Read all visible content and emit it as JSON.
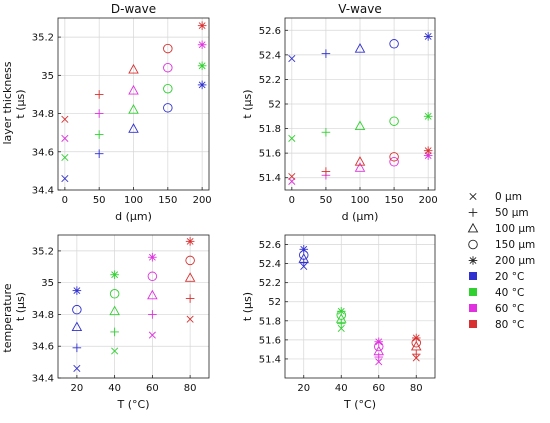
{
  "colors": {
    "T20": "#3030d0",
    "T40": "#30d030",
    "T60": "#e030e0",
    "T80": "#d83030"
  },
  "row_labels": [
    "layer thickness",
    "temperature"
  ],
  "legend": {
    "markers": [
      {
        "label": "0 µm",
        "marker": "x-mark"
      },
      {
        "label": "50 µm",
        "marker": "plus-mark"
      },
      {
        "label": "100 µm",
        "marker": "triangle-mark"
      },
      {
        "label": "150 µm",
        "marker": "circle-mark"
      },
      {
        "label": "200 µm",
        "marker": "star-mark"
      }
    ],
    "colors": [
      {
        "label": "20 °C",
        "color": "#3030d0"
      },
      {
        "label": "40 °C",
        "color": "#30d030"
      },
      {
        "label": "60 °C",
        "color": "#e030e0"
      },
      {
        "label": "80 °C",
        "color": "#d83030"
      }
    ]
  },
  "chart_data": [
    {
      "type": "scatter",
      "title": "D-wave",
      "xlabel": "d (µm)",
      "ylabel": "t (µs)",
      "xlim": [
        -10,
        210
      ],
      "ylim": [
        34.4,
        35.3
      ],
      "xticks": [
        0,
        50,
        100,
        150,
        200
      ],
      "yticks": [
        34.4,
        34.6,
        34.8,
        35.0,
        35.2
      ],
      "xticklabels": [
        "0",
        "50",
        "100",
        "150",
        "200"
      ],
      "yticklabels": [
        "34.4",
        "34.6",
        "34.8",
        "35",
        "35.2"
      ],
      "grid": true,
      "series": [
        {
          "temperature": "20 °C",
          "x": [
            0,
            50,
            100,
            150,
            200
          ],
          "y": [
            34.46,
            34.59,
            34.72,
            34.83,
            34.95
          ]
        },
        {
          "temperature": "40 °C",
          "x": [
            0,
            50,
            100,
            150,
            200
          ],
          "y": [
            34.57,
            34.69,
            34.82,
            34.93,
            35.05
          ]
        },
        {
          "temperature": "60 °C",
          "x": [
            0,
            50,
            100,
            150,
            200
          ],
          "y": [
            34.67,
            34.8,
            34.92,
            35.04,
            35.16
          ]
        },
        {
          "temperature": "80 °C",
          "x": [
            0,
            50,
            100,
            150,
            200
          ],
          "y": [
            34.77,
            34.9,
            35.03,
            35.14,
            35.26
          ]
        }
      ]
    },
    {
      "type": "scatter",
      "title": "V-wave",
      "xlabel": "d (µm)",
      "ylabel": "t (µs)",
      "xlim": [
        -10,
        210
      ],
      "ylim": [
        51.3,
        52.7
      ],
      "xticks": [
        0,
        50,
        100,
        150,
        200
      ],
      "yticks": [
        51.4,
        51.6,
        51.8,
        52.0,
        52.2,
        52.4,
        52.6
      ],
      "xticklabels": [
        "0",
        "50",
        "100",
        "150",
        "200"
      ],
      "yticklabels": [
        "51.4",
        "51.6",
        "51.8",
        "52",
        "52.2",
        "52.4",
        "52.6"
      ],
      "grid": true,
      "series": [
        {
          "temperature": "20 °C",
          "x": [
            0,
            50,
            100,
            150,
            200
          ],
          "y": [
            52.37,
            52.41,
            52.45,
            52.49,
            52.55
          ]
        },
        {
          "temperature": "40 °C",
          "x": [
            0,
            50,
            100,
            150,
            200
          ],
          "y": [
            51.72,
            51.77,
            51.82,
            51.86,
            51.9
          ]
        },
        {
          "temperature": "60 °C",
          "x": [
            0,
            50,
            100,
            150,
            200
          ],
          "y": [
            51.37,
            51.42,
            51.48,
            51.53,
            51.58
          ]
        },
        {
          "temperature": "80 °C",
          "x": [
            0,
            50,
            100,
            150,
            200
          ],
          "y": [
            51.41,
            51.45,
            51.53,
            51.57,
            51.62
          ]
        }
      ]
    },
    {
      "type": "scatter",
      "title": "",
      "xlabel": "T (°C)",
      "ylabel": "t (µs)",
      "xlim": [
        10,
        90
      ],
      "ylim": [
        34.4,
        35.3
      ],
      "xticks": [
        20,
        40,
        60,
        80
      ],
      "yticks": [
        34.4,
        34.6,
        34.8,
        35.0,
        35.2
      ],
      "xticklabels": [
        "20",
        "40",
        "60",
        "80"
      ],
      "yticklabels": [
        "34.4",
        "34.6",
        "34.8",
        "35",
        "35.2"
      ],
      "grid": true,
      "series": [
        {
          "thickness": "0 µm",
          "x": [
            20,
            40,
            60,
            80
          ],
          "y": [
            34.46,
            34.57,
            34.67,
            34.77
          ]
        },
        {
          "thickness": "50 µm",
          "x": [
            20,
            40,
            60,
            80
          ],
          "y": [
            34.59,
            34.69,
            34.8,
            34.9
          ]
        },
        {
          "thickness": "100 µm",
          "x": [
            20,
            40,
            60,
            80
          ],
          "y": [
            34.72,
            34.82,
            34.92,
            35.03
          ]
        },
        {
          "thickness": "150 µm",
          "x": [
            20,
            40,
            60,
            80
          ],
          "y": [
            34.83,
            34.93,
            35.04,
            35.14
          ]
        },
        {
          "thickness": "200 µm",
          "x": [
            20,
            40,
            60,
            80
          ],
          "y": [
            34.95,
            35.05,
            35.16,
            35.26
          ]
        }
      ]
    },
    {
      "type": "scatter",
      "title": "",
      "xlabel": "T (°C)",
      "ylabel": "t (µs)",
      "xlim": [
        10,
        90
      ],
      "ylim": [
        51.2,
        52.7
      ],
      "xticks": [
        20,
        40,
        60,
        80
      ],
      "yticks": [
        51.4,
        51.6,
        51.8,
        52.0,
        52.2,
        52.4,
        52.6
      ],
      "xticklabels": [
        "20",
        "40",
        "60",
        "80"
      ],
      "yticklabels": [
        "51.4",
        "51.6",
        "51.8",
        "52",
        "52.2",
        "52.4",
        "52.6"
      ],
      "grid": true,
      "series": [
        {
          "thickness": "0 µm",
          "x": [
            20,
            40,
            60,
            80
          ],
          "y": [
            52.37,
            51.72,
            51.37,
            51.41
          ]
        },
        {
          "thickness": "50 µm",
          "x": [
            20,
            40,
            60,
            80
          ],
          "y": [
            52.41,
            51.77,
            51.42,
            51.45
          ]
        },
        {
          "thickness": "100 µm",
          "x": [
            20,
            40,
            60,
            80
          ],
          "y": [
            52.45,
            51.82,
            51.48,
            51.53
          ]
        },
        {
          "thickness": "150 µm",
          "x": [
            20,
            40,
            60,
            80
          ],
          "y": [
            52.49,
            51.86,
            51.53,
            51.57
          ]
        },
        {
          "thickness": "200 µm",
          "x": [
            20,
            40,
            60,
            80
          ],
          "y": [
            52.55,
            51.9,
            51.58,
            51.62
          ]
        }
      ]
    }
  ]
}
